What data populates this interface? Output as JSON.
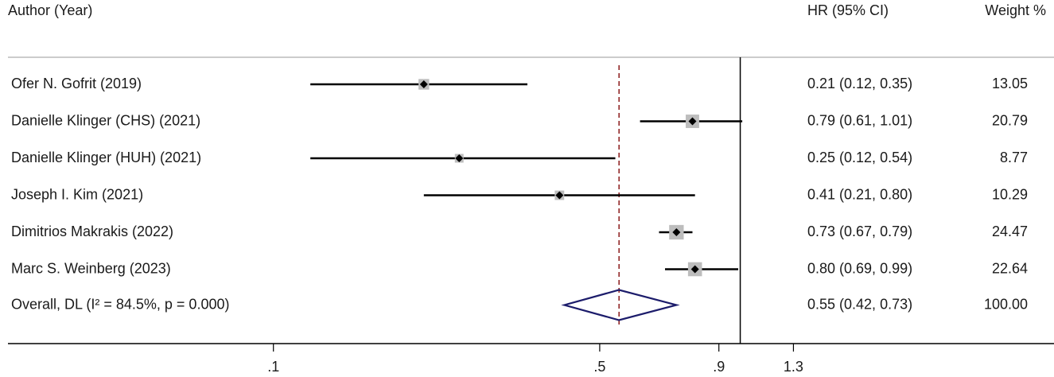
{
  "chart_data": {
    "type": "forest",
    "label_header": "Author (Year)",
    "value_header": "HR (95% CI)",
    "weight_header": "Weight %",
    "categories": [
      "Ofer N. Gofrit (2019)",
      "Danielle Klinger (CHS) (2021)",
      "Danielle Klinger (HUH) (2021)",
      "Joseph I. Kim (2021)",
      "Dimitrios Makrakis (2022)",
      "Marc S. Weinberg (2023)"
    ],
    "values": [
      0.21,
      0.79,
      0.25,
      0.41,
      0.73,
      0.8
    ],
    "lower": [
      0.12,
      0.61,
      0.12,
      0.21,
      0.67,
      0.69
    ],
    "upper": [
      0.35,
      1.01,
      0.54,
      0.8,
      0.79,
      0.99
    ],
    "value_labels": [
      "0.21 (0.12, 0.35)",
      "0.79 (0.61, 1.01)",
      "0.25 (0.12, 0.54)",
      "0.41 (0.21, 0.80)",
      "0.73 (0.67, 0.79)",
      "0.80 (0.69, 0.99)"
    ],
    "weights": [
      13.05,
      20.79,
      8.77,
      10.29,
      24.47,
      22.64
    ],
    "overall": {
      "label": "Overall, DL (I² = 84.5%, p = 0.000)",
      "value": 0.55,
      "lower": 0.42,
      "upper": 0.73,
      "value_label": "0.55 (0.42, 0.73)",
      "weight": {
        "value": 100,
        "label": "100.00"
      }
    },
    "null_value": 1,
    "xscale": "log",
    "xlim": [
      0.027,
      4.7
    ],
    "xticks": [
      {
        "value": 0.1,
        "label": ".1"
      },
      {
        "value": 0.5,
        "label": ".5"
      },
      {
        "value": 0.9,
        "label": ".9"
      },
      1.3
    ],
    "color": "#000000",
    "box_color": "#bdbdbd",
    "diamond_color": "#1c1c6b",
    "overall_line_color": "#8b1a1a"
  }
}
